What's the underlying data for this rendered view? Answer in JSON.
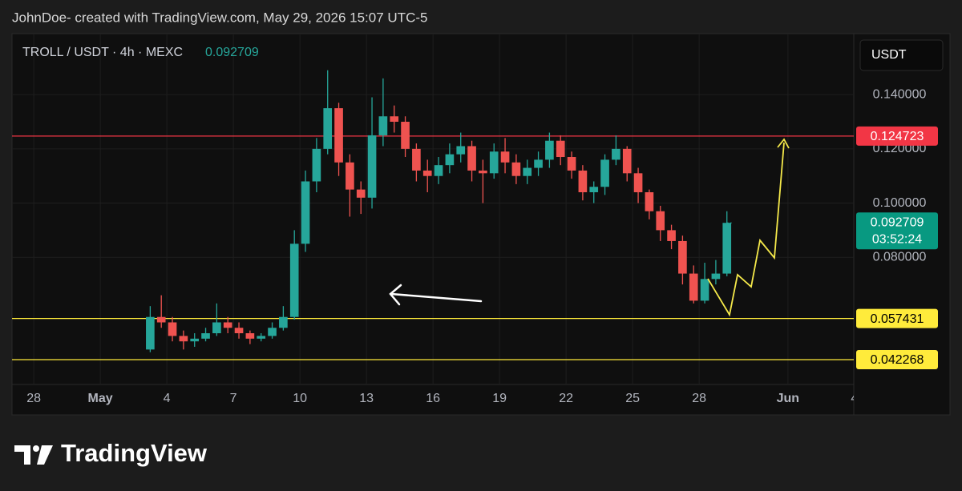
{
  "header": {
    "credit": "JohnDoe- created with TradingView.com, May 29, 2026 15:07 UTC-5"
  },
  "footer": {
    "brand": "TradingView"
  },
  "chart_data": {
    "type": "candlestick",
    "title": "TROLL / USDT · 4h · MEXC",
    "currency": "USDT",
    "countdown": "03:52:24",
    "up_color": "#26a69a",
    "down_color": "#ef5350",
    "grid": true,
    "xlim": [
      -0.98,
      36.97
    ],
    "xticks": [
      {
        "value": 0,
        "label": "28"
      },
      {
        "value": 3,
        "label": "May"
      },
      {
        "value": 6,
        "label": "4"
      },
      {
        "value": 9,
        "label": "7"
      },
      {
        "value": 12,
        "label": "10"
      },
      {
        "value": 15,
        "label": "13"
      },
      {
        "value": 18,
        "label": "16"
      },
      {
        "value": 21,
        "label": "19"
      },
      {
        "value": 24,
        "label": "22"
      },
      {
        "value": 27,
        "label": "25"
      },
      {
        "value": 30,
        "label": "28"
      },
      {
        "value": 34,
        "label": "Jun"
      },
      {
        "value": 37,
        "label": "4"
      }
    ],
    "ylim": [
      0.0331,
      0.1625
    ],
    "yticks": [
      {
        "value": 0.08,
        "label": "0.080000"
      },
      {
        "value": 0.1,
        "label": "0.100000"
      },
      {
        "value": 0.12,
        "label": "0.120000"
      },
      {
        "value": 0.14,
        "label": "0.140000"
      }
    ],
    "hlines": [
      {
        "value": 0.124723,
        "color": "#f23645"
      },
      {
        "value": 0.057431,
        "color": "#ffeb3b"
      },
      {
        "value": 0.042268,
        "color": "#ffeb3b"
      }
    ],
    "x": [
      5.25,
      5.75,
      6.25,
      6.75,
      7.25,
      7.75,
      8.25,
      8.75,
      9.25,
      9.75,
      10.25,
      10.75,
      11.25,
      11.75,
      12.25,
      12.75,
      13.25,
      13.75,
      14.25,
      14.75,
      15.25,
      15.75,
      16.25,
      16.75,
      17.25,
      17.75,
      18.25,
      18.75,
      19.25,
      19.75,
      20.25,
      20.75,
      21.25,
      21.75,
      22.25,
      22.75,
      23.25,
      23.75,
      24.25,
      24.75,
      25.25,
      25.75,
      26.25,
      26.75,
      27.25,
      27.75,
      28.25,
      28.75,
      29.25,
      29.75,
      30.25,
      30.75,
      31.25
    ],
    "open": [
      0.046,
      0.058,
      0.056,
      0.051,
      0.049,
      0.05,
      0.052,
      0.056,
      0.054,
      0.052,
      0.05,
      0.051,
      0.054,
      0.058,
      0.085,
      0.108,
      0.12,
      0.135,
      0.115,
      0.105,
      0.102,
      0.125,
      0.132,
      0.13,
      0.12,
      0.112,
      0.11,
      0.114,
      0.118,
      0.121,
      0.112,
      0.111,
      0.119,
      0.115,
      0.11,
      0.113,
      0.116,
      0.123,
      0.117,
      0.112,
      0.104,
      0.106,
      0.116,
      0.12,
      0.111,
      0.104,
      0.097,
      0.09,
      0.086,
      0.074,
      0.064,
      0.072,
      0.074
    ],
    "high": [
      0.062,
      0.066,
      0.058,
      0.053,
      0.052,
      0.054,
      0.063,
      0.058,
      0.056,
      0.053,
      0.052,
      0.056,
      0.062,
      0.09,
      0.112,
      0.124,
      0.149,
      0.137,
      0.118,
      0.108,
      0.139,
      0.146,
      0.136,
      0.132,
      0.122,
      0.116,
      0.117,
      0.122,
      0.126,
      0.123,
      0.116,
      0.122,
      0.124,
      0.118,
      0.116,
      0.119,
      0.126,
      0.125,
      0.119,
      0.114,
      0.108,
      0.118,
      0.125,
      0.121,
      0.113,
      0.105,
      0.099,
      0.092,
      0.088,
      0.077,
      0.078,
      0.079,
      0.097
    ],
    "low": [
      0.045,
      0.054,
      0.049,
      0.046,
      0.047,
      0.049,
      0.051,
      0.052,
      0.05,
      0.048,
      0.049,
      0.05,
      0.053,
      0.057,
      0.082,
      0.104,
      0.118,
      0.11,
      0.095,
      0.096,
      0.098,
      0.121,
      0.126,
      0.117,
      0.108,
      0.104,
      0.107,
      0.111,
      0.115,
      0.108,
      0.1,
      0.109,
      0.111,
      0.107,
      0.107,
      0.11,
      0.113,
      0.114,
      0.109,
      0.101,
      0.1,
      0.103,
      0.114,
      0.108,
      0.1,
      0.094,
      0.086,
      0.083,
      0.07,
      0.063,
      0.063,
      0.07,
      0.073
    ],
    "close": [
      0.058,
      0.056,
      0.051,
      0.049,
      0.05,
      0.052,
      0.056,
      0.054,
      0.052,
      0.05,
      0.051,
      0.054,
      0.058,
      0.085,
      0.108,
      0.12,
      0.135,
      0.115,
      0.105,
      0.102,
      0.125,
      0.132,
      0.13,
      0.12,
      0.112,
      0.11,
      0.114,
      0.118,
      0.121,
      0.112,
      0.111,
      0.119,
      0.115,
      0.11,
      0.113,
      0.116,
      0.123,
      0.117,
      0.112,
      0.104,
      0.106,
      0.116,
      0.12,
      0.111,
      0.104,
      0.097,
      0.09,
      0.086,
      0.074,
      0.064,
      0.072,
      0.074,
      0.092709
    ]
  }
}
